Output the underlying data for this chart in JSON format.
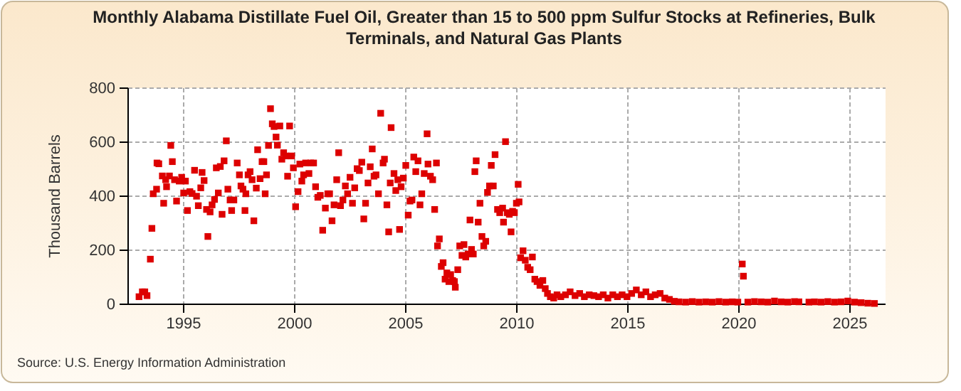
{
  "chart_data": {
    "type": "scatter",
    "title": "Monthly Alabama Distillate Fuel Oil, Greater than 15 to 500 ppm Sulfur Stocks at Refineries, Bulk Terminals, and Natural Gas Plants",
    "ylabel": "Thousand Barrels",
    "annotations": [
      "Source: U.S. Energy Information Administration"
    ],
    "marker": "square",
    "grid": true,
    "xlim": [
      1992.5,
      2026.6
    ],
    "xticks": [
      1995,
      2000,
      2005,
      2010,
      2015,
      2020,
      2025
    ],
    "ylim": [
      0,
      800
    ],
    "yticks": [
      0,
      200,
      400,
      600,
      800
    ],
    "series": [
      {
        "color": "#dd0000",
        "x": [
          1992.99,
          1993.14,
          1993.25,
          1993.35,
          1993.5,
          1993.57,
          1993.63,
          1993.78,
          1993.8,
          1993.88,
          1994.04,
          1994.1,
          1994.19,
          1994.23,
          1994.36,
          1994.42,
          1994.49,
          1994.59,
          1994.68,
          1994.8,
          1994.91,
          1995.0,
          1995.08,
          1995.17,
          1995.28,
          1995.38,
          1995.49,
          1995.58,
          1995.66,
          1995.77,
          1995.83,
          1995.92,
          1996.03,
          1996.09,
          1996.19,
          1996.28,
          1996.39,
          1996.47,
          1996.56,
          1996.65,
          1996.73,
          1996.82,
          1996.92,
          1996.99,
          1997.09,
          1997.16,
          1997.26,
          1997.41,
          1997.51,
          1997.58,
          1997.67,
          1997.76,
          1997.8,
          1997.9,
          1997.99,
          1998.08,
          1998.16,
          1998.27,
          1998.33,
          1998.44,
          1998.53,
          1998.61,
          1998.67,
          1998.73,
          1998.82,
          1998.91,
          1998.99,
          1999.07,
          1999.16,
          1999.22,
          1999.33,
          1999.42,
          1999.5,
          1999.6,
          1999.68,
          1999.77,
          1999.86,
          1999.94,
          2000.04,
          2000.15,
          2000.23,
          2000.32,
          2000.4,
          2000.49,
          2000.64,
          2000.72,
          2000.85,
          2000.94,
          2001.04,
          2001.15,
          2001.26,
          2001.38,
          2001.49,
          2001.57,
          2001.68,
          2001.77,
          2001.89,
          2001.98,
          2002.06,
          2002.17,
          2002.28,
          2002.38,
          2002.49,
          2002.6,
          2002.7,
          2002.81,
          2002.91,
          2003.02,
          2003.11,
          2003.19,
          2003.3,
          2003.4,
          2003.49,
          2003.57,
          2003.66,
          2003.77,
          2003.87,
          2003.98,
          2004.04,
          2004.15,
          2004.23,
          2004.3,
          2004.34,
          2004.47,
          2004.55,
          2004.64,
          2004.72,
          2004.79,
          2004.89,
          2005.0,
          2005.11,
          2005.19,
          2005.28,
          2005.36,
          2005.45,
          2005.55,
          2005.64,
          2005.72,
          2005.83,
          2005.96,
          2006.0,
          2006.11,
          2006.21,
          2006.3,
          2006.38,
          2006.43,
          2006.51,
          2006.6,
          2006.68,
          2006.77,
          2006.85,
          2006.94,
          2007.02,
          2007.11,
          2007.19,
          2007.23,
          2007.34,
          2007.43,
          2007.53,
          2007.62,
          2007.7,
          2007.81,
          2007.89,
          2007.96,
          2008.04,
          2008.11,
          2008.17,
          2008.26,
          2008.34,
          2008.43,
          2008.51,
          2008.6,
          2008.68,
          2008.77,
          2008.85,
          2008.94,
          2009.02,
          2009.13,
          2009.23,
          2009.36,
          2009.4,
          2009.49,
          2009.57,
          2009.66,
          2009.74,
          2009.81,
          2009.89,
          2009.98,
          2010.06,
          2010.1,
          2010.17,
          2010.28,
          2010.38,
          2010.49,
          2010.6,
          2010.7,
          2010.81,
          2010.91,
          2011.04,
          2011.17,
          2011.28,
          2011.38,
          2011.51,
          2011.66,
          2011.81,
          2011.98,
          2012.19,
          2012.4,
          2012.62,
          2012.83,
          2013.04,
          2013.26,
          2013.47,
          2013.68,
          2013.89,
          2014.1,
          2014.32,
          2014.53,
          2014.74,
          2014.96,
          2015.17,
          2015.38,
          2015.6,
          2015.81,
          2016.02,
          2016.23,
          2016.45,
          2016.66,
          2016.87,
          2017.09,
          2017.3,
          2017.6,
          2017.9,
          2018.2,
          2018.5,
          2018.8,
          2019.1,
          2019.4,
          2019.7,
          2019.95,
          2020.15,
          2020.2,
          2020.4,
          2020.7,
          2021.0,
          2021.3,
          2021.6,
          2021.9,
          2022.2,
          2022.5,
          2022.7,
          2023.15,
          2023.4,
          2023.7,
          2024.0,
          2024.3,
          2024.6,
          2024.9,
          2025.2,
          2025.5,
          2025.8,
          2026.1
        ],
        "values": [
          28,
          46,
          46,
          32,
          167,
          281,
          409,
          426,
          523,
          520,
          475,
          374,
          461,
          435,
          475,
          588,
          528,
          461,
          382,
          456,
          470,
          412,
          456,
          347,
          417,
          410,
          496,
          400,
          365,
          431,
          488,
          458,
          351,
          251,
          342,
          368,
          388,
          505,
          412,
          510,
          333,
          531,
          605,
          426,
          386,
          347,
          386,
          523,
          479,
          438,
          426,
          347,
          409,
          479,
          491,
          461,
          309,
          430,
          572,
          465,
          528,
          528,
          409,
          479,
          588,
          724,
          668,
          658,
          619,
          589,
          660,
          537,
          561,
          549,
          474,
          660,
          549,
          505,
          361,
          417,
          519,
          456,
          479,
          523,
          484,
          523,
          523,
          435,
          396,
          403,
          274,
          356,
          409,
          409,
          309,
          368,
          461,
          561,
          365,
          386,
          438,
          409,
          470,
          374,
          431,
          502,
          495,
          526,
          316,
          374,
          449,
          509,
          575,
          474,
          479,
          409,
          707,
          523,
          537,
          368,
          268,
          449,
          654,
          484,
          421,
          461,
          277,
          435,
          467,
          514,
          330,
          382,
          386,
          545,
          491,
          531,
          368,
          409,
          484,
          631,
          519,
          474,
          461,
          351,
          523,
          216,
          242,
          140,
          154,
          93,
          116,
          84,
          110,
          88,
          84,
          63,
          128,
          216,
          181,
          221,
          175,
          186,
          312,
          203,
          186,
          491,
          531,
          304,
          374,
          251,
          216,
          233,
          414,
          438,
          514,
          438,
          554,
          351,
          339,
          356,
          304,
          602,
          339,
          333,
          268,
          344,
          339,
          374,
          444,
          379,
          172,
          198,
          163,
          137,
          128,
          175,
          93,
          84,
          70,
          88,
          58,
          40,
          28,
          23,
          35,
          28,
          35,
          46,
          32,
          40,
          28,
          35,
          32,
          28,
          35,
          23,
          35,
          28,
          35,
          28,
          40,
          53,
          35,
          46,
          28,
          35,
          40,
          23,
          18,
          11,
          9,
          8,
          10,
          8,
          9,
          8,
          10,
          8,
          9,
          8,
          149,
          104,
          8,
          10,
          9,
          8,
          12,
          9,
          8,
          10,
          9,
          8,
          9,
          8,
          10,
          8,
          9,
          12,
          8,
          6,
          4,
          3
        ]
      }
    ]
  }
}
